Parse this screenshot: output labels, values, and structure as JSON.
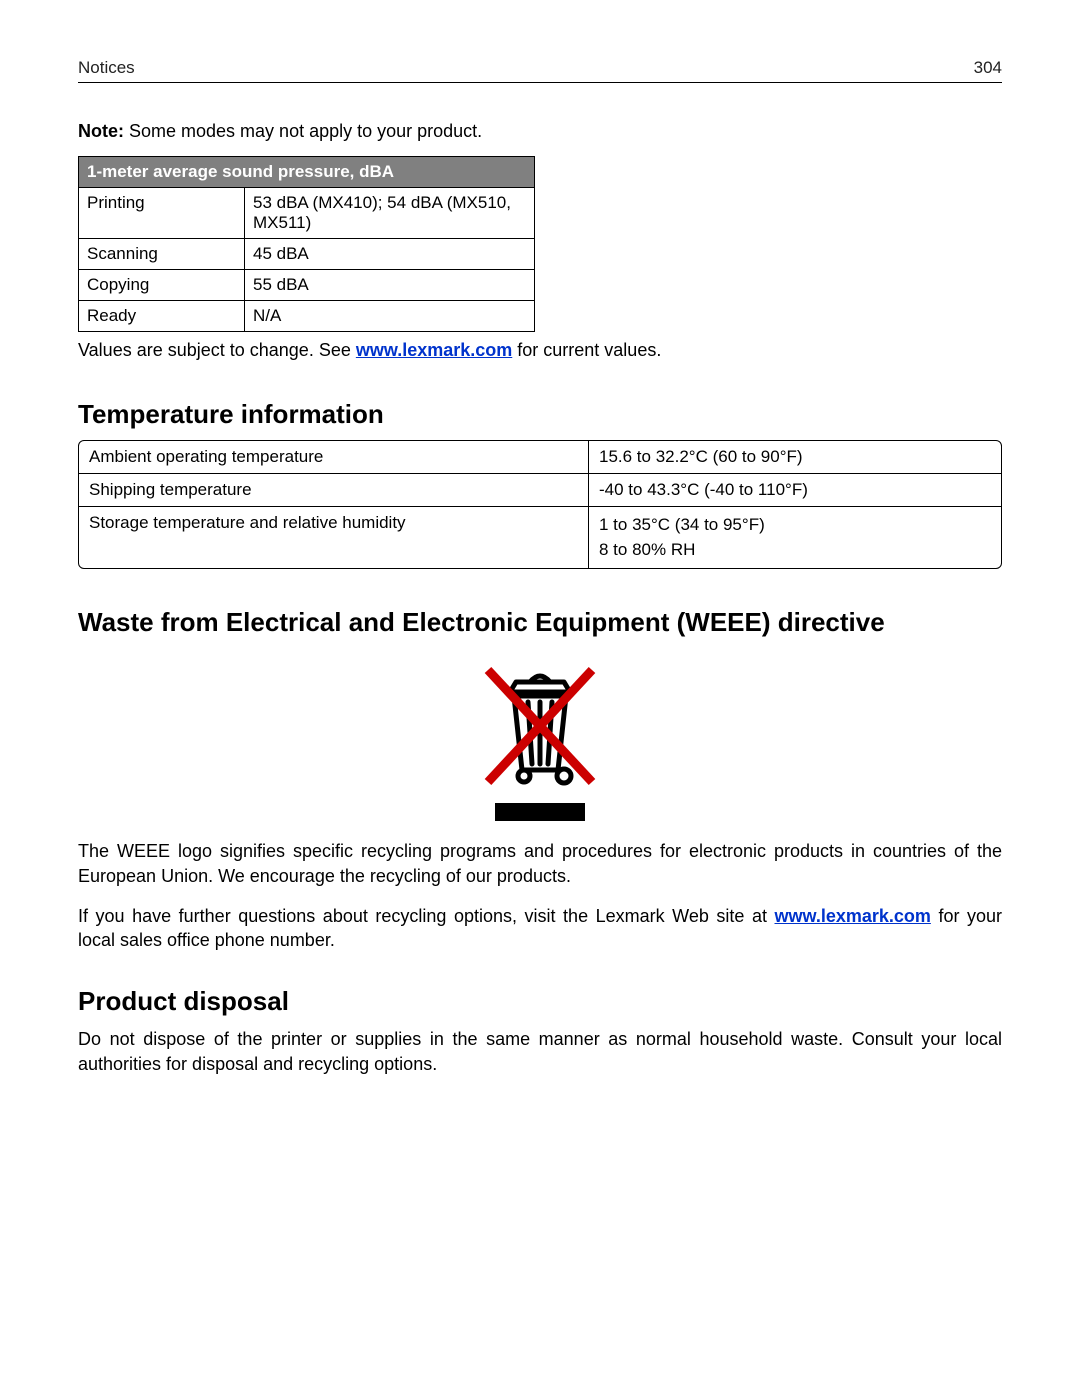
{
  "header": {
    "section": "Notices",
    "page_number": "304"
  },
  "note": {
    "label": "Note:",
    "text": " Some modes may not apply to your product."
  },
  "sound_table": {
    "header": "1-meter average sound pressure, dBA",
    "rows": [
      {
        "mode": "Printing",
        "value": "53 dBA (MX410); 54 dBA (MX510, MX511)"
      },
      {
        "mode": "Scanning",
        "value": "45 dBA"
      },
      {
        "mode": "Copying",
        "value": "55 dBA"
      },
      {
        "mode": "Ready",
        "value": "N/A"
      }
    ]
  },
  "values_note": {
    "pre": "Values are subject to change. See ",
    "link": "www.lexmark.com",
    "post": " for current values."
  },
  "temp_section": {
    "heading": "Temperature information",
    "rows": [
      {
        "label": "Ambient operating temperature",
        "value": "15.6 to 32.2°C (60 to 90°F)"
      },
      {
        "label": "Shipping temperature",
        "value": "-40 to 43.3°C (-40 to 110°F)"
      },
      {
        "label": "Storage temperature and relative humidity",
        "value": "1 to 35°C (34 to 95°F)\n8 to 80% RH"
      }
    ]
  },
  "weee_section": {
    "heading": "Waste from Electrical and Electronic Equipment (WEEE) directive",
    "icon_name": "weee-crossed-bin-icon",
    "para1": "The WEEE logo signifies specific recycling programs and procedures for electronic products in countries of the European Union. We encourage the recycling of our products.",
    "para2_pre": "If you have further questions about recycling options, visit the Lexmark Web site at ",
    "para2_link": "www.lexmark.com",
    "para2_post": " for your local sales office phone number."
  },
  "disposal_section": {
    "heading": "Product disposal",
    "para": "Do not dispose of the printer or supplies in the same manner as normal household waste. Consult your local authorities for disposal and recycling options."
  }
}
